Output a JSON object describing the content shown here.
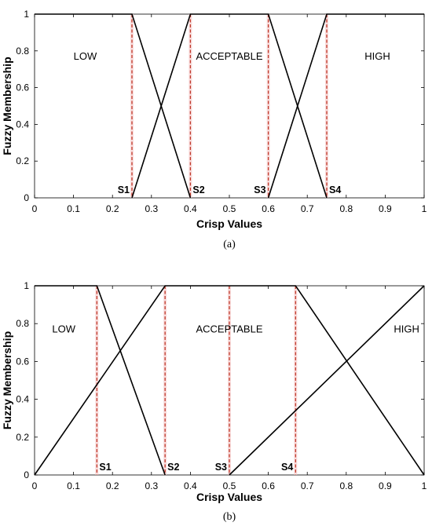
{
  "chart_data": [
    {
      "type": "line",
      "caption": "(a)",
      "xlabel": "Crisp Values",
      "ylabel": "Fuzzy Membership",
      "xlim": [
        0,
        1
      ],
      "ylim": [
        0,
        1
      ],
      "xticks": [
        "0",
        "0.1",
        "0.2",
        "0.3",
        "0.4",
        "0.5",
        "0.6",
        "0.7",
        "0.8",
        "0.9",
        "1"
      ],
      "yticks": [
        "0",
        "0.2",
        "0.4",
        "0.6",
        "0.8",
        "1"
      ],
      "grid": false,
      "series": [
        {
          "name": "LOW",
          "x": [
            0,
            0.25,
            0.4
          ],
          "y": [
            1,
            1,
            0
          ]
        },
        {
          "name": "ACCEPTABLE",
          "x": [
            0.25,
            0.4,
            0.6,
            0.75
          ],
          "y": [
            0,
            1,
            1,
            0
          ]
        },
        {
          "name": "HIGH",
          "x": [
            0.6,
            0.75,
            1
          ],
          "y": [
            0,
            1,
            1
          ]
        }
      ],
      "region_labels": [
        {
          "text": "LOW",
          "x": 0.13,
          "y": 0.77
        },
        {
          "text": "ACCEPTABLE",
          "x": 0.5,
          "y": 0.77
        },
        {
          "text": "HIGH",
          "x": 0.88,
          "y": 0.77
        }
      ],
      "thresholds": [
        {
          "label": "S1",
          "x": 0.25,
          "side": "left"
        },
        {
          "label": "S2",
          "x": 0.4,
          "side": "right"
        },
        {
          "label": "S3",
          "x": 0.6,
          "side": "left"
        },
        {
          "label": "S4",
          "x": 0.75,
          "side": "right"
        }
      ]
    },
    {
      "type": "line",
      "caption": "(b)",
      "xlabel": "Crisp Values",
      "ylabel": "Fuzzy Membership",
      "xlim": [
        0,
        1
      ],
      "ylim": [
        0,
        1
      ],
      "xticks": [
        "0",
        "0.1",
        "0.2",
        "0.3",
        "0.4",
        "0.5",
        "0.6",
        "0.7",
        "0.8",
        "0.9",
        "1"
      ],
      "yticks": [
        "0",
        "0.2",
        "0.4",
        "0.6",
        "0.8",
        "1"
      ],
      "grid": false,
      "series": [
        {
          "name": "LOW",
          "x": [
            0,
            0.16,
            0.335
          ],
          "y": [
            1,
            1,
            0
          ]
        },
        {
          "name": "ACCEPTABLE",
          "x": [
            0,
            0.335,
            0.67,
            1
          ],
          "y": [
            0,
            1,
            1,
            0
          ]
        },
        {
          "name": "HIGH",
          "x": [
            0.5,
            1
          ],
          "y": [
            0,
            1
          ]
        }
      ],
      "region_labels": [
        {
          "text": "LOW",
          "x": 0.075,
          "y": 0.77
        },
        {
          "text": "ACCEPTABLE",
          "x": 0.5,
          "y": 0.77
        },
        {
          "text": "HIGH",
          "x": 0.955,
          "y": 0.77
        }
      ],
      "thresholds": [
        {
          "label": "S1",
          "x": 0.16,
          "side": "right"
        },
        {
          "label": "S2",
          "x": 0.335,
          "side": "right"
        },
        {
          "label": "S3",
          "x": 0.5,
          "side": "left"
        },
        {
          "label": "S4",
          "x": 0.67,
          "side": "left"
        }
      ]
    }
  ],
  "colors": {
    "line": "#000000",
    "threshold": "#c0392b",
    "threshold_glow": "#f5c6c6"
  }
}
